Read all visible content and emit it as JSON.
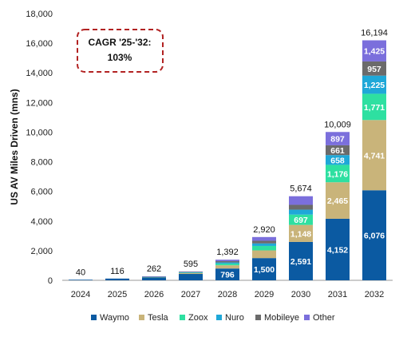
{
  "chart_data": {
    "type": "bar",
    "stacked": true,
    "title": "",
    "xlabel": "",
    "ylabel": "US AV Miles Driven (mns)",
    "ylim": [
      0,
      18000
    ],
    "yticks": [
      "0",
      "2,000",
      "4,000",
      "6,000",
      "8,000",
      "10,000",
      "12,000",
      "14,000",
      "16,000",
      "18,000"
    ],
    "categories": [
      "2024",
      "2025",
      "2026",
      "2027",
      "2028",
      "2029",
      "2030",
      "2031",
      "2032"
    ],
    "totals": [
      "40",
      "116",
      "262",
      "595",
      "1,392",
      "2,920",
      "5,674",
      "10,009",
      "16,194"
    ],
    "grid": false,
    "legend_position": "bottom",
    "callout": {
      "line1": "CAGR '25-'32:",
      "line2": "103%"
    },
    "series": [
      {
        "name": "Waymo",
        "color": "#0b5aa2",
        "values": [
          40,
          116,
          200,
          430,
          796,
          1500,
          2591,
          4152,
          6076
        ],
        "labels": [
          "",
          "",
          "",
          "",
          "796",
          "1,500",
          "2,591",
          "4,152",
          "6,076"
        ]
      },
      {
        "name": "Tesla",
        "color": "#c9b47a",
        "values": [
          0,
          0,
          20,
          60,
          220,
          520,
          1148,
          2465,
          4741
        ],
        "labels": [
          "",
          "",
          "",
          "",
          "",
          "",
          "1,148",
          "2,465",
          "4,741"
        ]
      },
      {
        "name": "Zoox",
        "color": "#2ee0a1",
        "values": [
          0,
          0,
          12,
          30,
          110,
          300,
          697,
          1176,
          1771
        ],
        "labels": [
          "",
          "",
          "",
          "",
          "",
          "",
          "697",
          "1,176",
          "1,771"
        ]
      },
      {
        "name": "Nuro",
        "color": "#1fa8d8",
        "values": [
          0,
          0,
          10,
          25,
          80,
          170,
          330,
          658,
          1225
        ],
        "labels": [
          "",
          "",
          "",
          "",
          "",
          "",
          "",
          "658",
          "1,225"
        ]
      },
      {
        "name": "Mobileye",
        "color": "#6b6b6b",
        "values": [
          0,
          0,
          10,
          25,
          86,
          180,
          328,
          661,
          957
        ],
        "labels": [
          "",
          "",
          "",
          "",
          "",
          "",
          "",
          "661",
          "957"
        ]
      },
      {
        "name": "Other",
        "color": "#7b6fdc",
        "values": [
          0,
          0,
          10,
          25,
          100,
          250,
          580,
          897,
          1425
        ],
        "labels": [
          "",
          "",
          "",
          "",
          "",
          "",
          "",
          "897",
          "1,425"
        ]
      }
    ]
  }
}
